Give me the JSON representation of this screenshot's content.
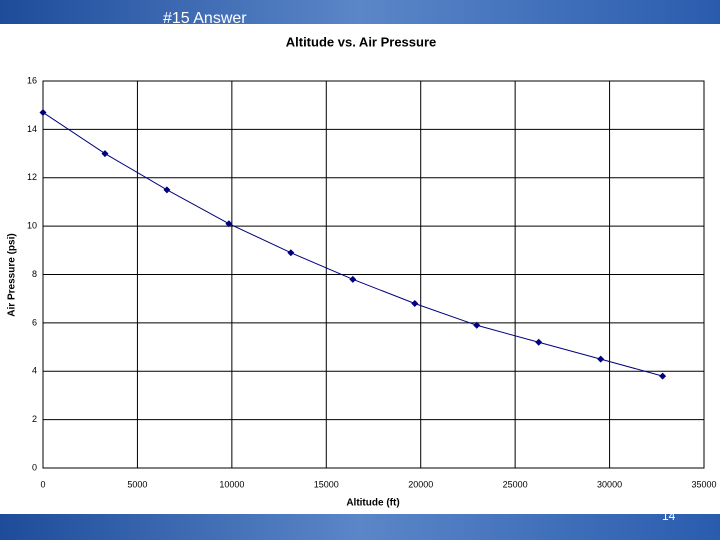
{
  "header": {
    "title": "#15 Answer"
  },
  "footer": {
    "page_number": "14"
  },
  "chart_data": {
    "type": "scatter",
    "title": "Altitude vs. Air Pressure",
    "x_label": "Altitude (ft)",
    "y_label": "Air Pressure (psi)",
    "series": [
      {
        "name": "Air Pressure",
        "color": "#000080",
        "x": [
          0,
          3281,
          6562,
          9843,
          13124,
          16405,
          19686,
          22967,
          26248,
          29529,
          32810
        ],
        "values": [
          14.7,
          13.0,
          11.5,
          10.1,
          8.9,
          7.8,
          6.8,
          5.9,
          5.2,
          4.5,
          3.8
        ]
      }
    ],
    "xlim": [
      0,
      35000
    ],
    "xticks": [
      0,
      5000,
      10000,
      15000,
      20000,
      25000,
      30000,
      35000
    ],
    "ylim": [
      0,
      16
    ],
    "yticks": [
      0,
      2,
      4,
      6,
      8,
      10,
      12,
      14,
      16
    ],
    "grid": true,
    "trendline": true
  }
}
